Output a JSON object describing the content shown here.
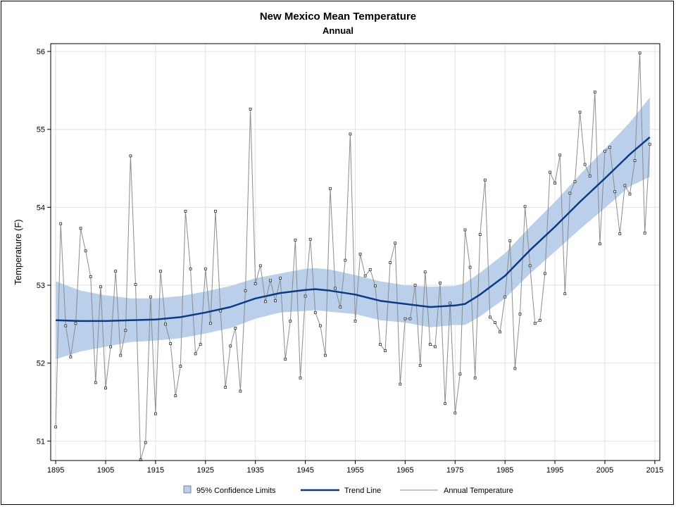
{
  "chart_data": {
    "type": "line",
    "title": "New Mexico Mean Temperature",
    "subtitle": "Annual",
    "xlabel": "",
    "ylabel": "Temperature (F)",
    "xlim": [
      1894,
      2016
    ],
    "ylim": [
      50.75,
      56.1
    ],
    "x_ticks": [
      1895,
      1905,
      1915,
      1925,
      1935,
      1945,
      1955,
      1965,
      1975,
      1985,
      1995,
      2005,
      2015
    ],
    "y_ticks": [
      51,
      52,
      53,
      54,
      55,
      56
    ],
    "grid": true,
    "legend": "bottom",
    "colors": {
      "band": "#b9cfea",
      "trend": "#0b3a86",
      "annual": "#8c8c8c",
      "marker": "#2b2b2b",
      "grid": "#e2e2e2"
    },
    "legend_labels": {
      "band": "95% Confidence Limits",
      "trend": "Trend Line",
      "annual": "Annual Temperature"
    },
    "annual_temperature": {
      "x": [
        1895,
        1896,
        1897,
        1898,
        1899,
        1900,
        1901,
        1902,
        1903,
        1904,
        1905,
        1906,
        1907,
        1908,
        1909,
        1910,
        1911,
        1912,
        1913,
        1914,
        1915,
        1916,
        1917,
        1918,
        1919,
        1920,
        1921,
        1922,
        1923,
        1924,
        1925,
        1926,
        1927,
        1928,
        1929,
        1930,
        1931,
        1932,
        1933,
        1934,
        1935,
        1936,
        1937,
        1938,
        1939,
        1940,
        1941,
        1942,
        1943,
        1944,
        1945,
        1946,
        1947,
        1948,
        1949,
        1950,
        1951,
        1952,
        1953,
        1954,
        1955,
        1956,
        1957,
        1958,
        1959,
        1960,
        1961,
        1962,
        1963,
        1964,
        1965,
        1966,
        1967,
        1968,
        1969,
        1970,
        1971,
        1972,
        1973,
        1974,
        1975,
        1976,
        1977,
        1978,
        1979,
        1980,
        1981,
        1982,
        1983,
        1984,
        1985,
        1986,
        1987,
        1988,
        1989,
        1990,
        1991,
        1992,
        1993,
        1994,
        1995,
        1996,
        1997,
        1998,
        1999,
        2000,
        2001,
        2002,
        2003,
        2004,
        2005,
        2006,
        2007,
        2008,
        2009,
        2010,
        2011,
        2012,
        2013,
        2014
      ],
      "y": [
        51.18,
        53.79,
        52.48,
        52.08,
        52.51,
        53.73,
        53.44,
        53.11,
        51.75,
        52.98,
        51.68,
        52.21,
        53.18,
        52.1,
        52.42,
        54.66,
        53.01,
        50.76,
        50.98,
        52.85,
        51.35,
        53.18,
        52.5,
        52.25,
        51.58,
        51.96,
        53.95,
        53.21,
        52.12,
        52.24,
        53.21,
        52.51,
        53.95,
        52.67,
        51.69,
        52.22,
        52.45,
        51.64,
        52.93,
        55.26,
        53.02,
        53.25,
        52.79,
        53.06,
        52.8,
        53.09,
        52.05,
        52.54,
        53.58,
        51.81,
        52.86,
        53.59,
        52.65,
        52.48,
        52.1,
        54.24,
        52.96,
        52.72,
        53.32,
        54.94,
        52.54,
        53.4,
        53.12,
        53.2,
        52.99,
        52.24,
        52.16,
        53.29,
        53.54,
        51.73,
        52.57,
        52.57,
        53.0,
        51.97,
        53.17,
        52.24,
        52.21,
        53.03,
        51.48,
        52.77,
        51.36,
        51.86,
        53.71,
        53.23,
        51.81,
        53.65,
        54.35,
        52.59,
        52.52,
        52.4,
        52.85,
        53.57,
        51.93,
        52.63,
        54.01,
        53.25,
        52.51,
        52.55,
        53.15,
        54.45,
        54.31,
        54.67,
        52.89,
        54.18,
        54.33,
        55.22,
        54.55,
        54.4,
        55.48,
        53.53,
        54.72,
        54.77,
        54.2,
        53.66,
        54.28,
        54.17,
        54.6,
        55.98,
        53.67,
        54.81
      ]
    },
    "trend_line": {
      "x": [
        1895,
        1900,
        1905,
        1910,
        1915,
        1920,
        1925,
        1930,
        1935,
        1940,
        1945,
        1947,
        1950,
        1955,
        1960,
        1965,
        1970,
        1975,
        1977,
        1980,
        1985,
        1990,
        1995,
        2000,
        2005,
        2010,
        2014
      ],
      "y": [
        52.55,
        52.54,
        52.54,
        52.55,
        52.56,
        52.59,
        52.65,
        52.72,
        52.83,
        52.9,
        52.94,
        52.95,
        52.93,
        52.88,
        52.8,
        52.76,
        52.72,
        52.74,
        52.76,
        52.88,
        53.12,
        53.45,
        53.75,
        54.07,
        54.37,
        54.68,
        54.9
      ]
    },
    "confidence_upper": [
      53.05,
      52.93,
      52.87,
      52.83,
      52.83,
      52.86,
      52.92,
      52.99,
      53.09,
      53.15,
      53.21,
      53.22,
      53.2,
      53.13,
      53.05,
      53.0,
      52.98,
      52.99,
      53.03,
      53.16,
      53.41,
      53.75,
      54.07,
      54.42,
      54.75,
      55.09,
      55.41
    ],
    "confidence_lower": [
      52.05,
      52.15,
      52.21,
      52.27,
      52.29,
      52.32,
      52.38,
      52.45,
      52.57,
      52.65,
      52.67,
      52.68,
      52.66,
      52.63,
      52.55,
      52.52,
      52.46,
      52.49,
      52.49,
      52.6,
      52.83,
      53.15,
      53.43,
      53.72,
      53.99,
      54.27,
      54.39
    ]
  }
}
